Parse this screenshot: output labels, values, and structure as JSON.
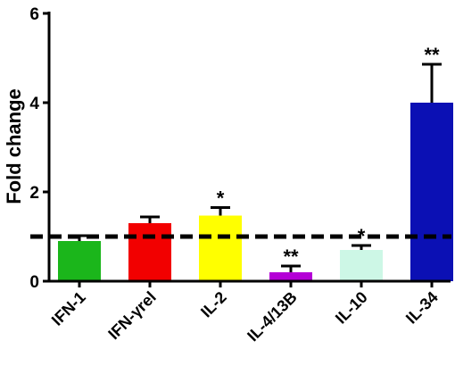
{
  "chart_data": {
    "type": "bar",
    "title": "",
    "xlabel": "",
    "ylabel": "Fold change",
    "ylim": [
      0,
      6
    ],
    "yticks": [
      0,
      2,
      4,
      6
    ],
    "ytick_labels": [
      "0",
      "2",
      "4",
      "6"
    ],
    "grid": false,
    "reference_line": 1,
    "categories": [
      "IFN-1",
      "IFN-γrel",
      "IL-2",
      "IL-4/13B",
      "IL-10",
      "IL-34"
    ],
    "values": [
      0.9,
      1.3,
      1.47,
      0.2,
      0.7,
      4.0
    ],
    "errors": [
      0.12,
      0.14,
      0.18,
      0.14,
      0.1,
      0.86
    ],
    "colors": [
      "#1bb61b",
      "#f20000",
      "#ffff00",
      "#b400d6",
      "#cdf7e6",
      "#0b10b4"
    ],
    "significance": [
      "",
      "",
      "*",
      "**",
      "*",
      "**"
    ]
  }
}
